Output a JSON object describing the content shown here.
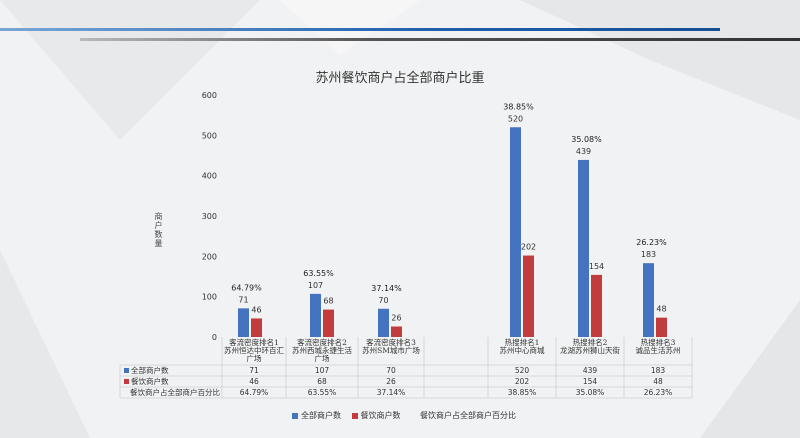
{
  "colors": {
    "all": "#4473c0",
    "food": "#c23b3d",
    "grid": "#cfcfcf"
  },
  "chart_data": {
    "type": "bar",
    "title": "苏州餐饮商户占全部商户比重",
    "ylabel": "商户数量",
    "ylim": [
      0,
      600
    ],
    "yticks": [
      0,
      100,
      200,
      300,
      400,
      500,
      600
    ],
    "categories": [
      [
        "客流密度排名1",
        "苏州恒达中环百汇",
        "广场"
      ],
      [
        "客流密度排名2",
        "苏州西城永捷生活",
        "广场"
      ],
      [
        "客流密度排名3",
        "苏州SM城市广场"
      ],
      [
        "热搜排名1",
        "苏州中心商城"
      ],
      [
        "热搜排名2",
        "龙湖苏州狮山天街"
      ],
      [
        "热搜排名3",
        "诚品生活苏州"
      ]
    ],
    "series": [
      {
        "name": "全部商户数",
        "values": [
          71,
          107,
          70,
          520,
          439,
          183
        ]
      },
      {
        "name": "餐饮商户数",
        "values": [
          46,
          68,
          26,
          202,
          154,
          48
        ]
      }
    ],
    "percent_series": {
      "name": "餐饮商户占全部商户百分比",
      "values": [
        "64.79%",
        "63.55%",
        "37.14%",
        "38.85%",
        "35.08%",
        "26.23%"
      ]
    },
    "table_rows": [
      {
        "label": "全部商户数",
        "values": [
          "71",
          "107",
          "70",
          "520",
          "439",
          "183"
        ]
      },
      {
        "label": "餐饮商户数",
        "values": [
          "46",
          "68",
          "26",
          "202",
          "154",
          "48"
        ]
      },
      {
        "label": "餐饮商户占全部商户百分比",
        "values": [
          "64.79%",
          "63.55%",
          "37.14%",
          "38.85%",
          "35.08%",
          "26.23%"
        ]
      }
    ],
    "legend": [
      "全部商户数",
      "餐饮商户数",
      "餐饮商户占全部商户百分比"
    ]
  }
}
